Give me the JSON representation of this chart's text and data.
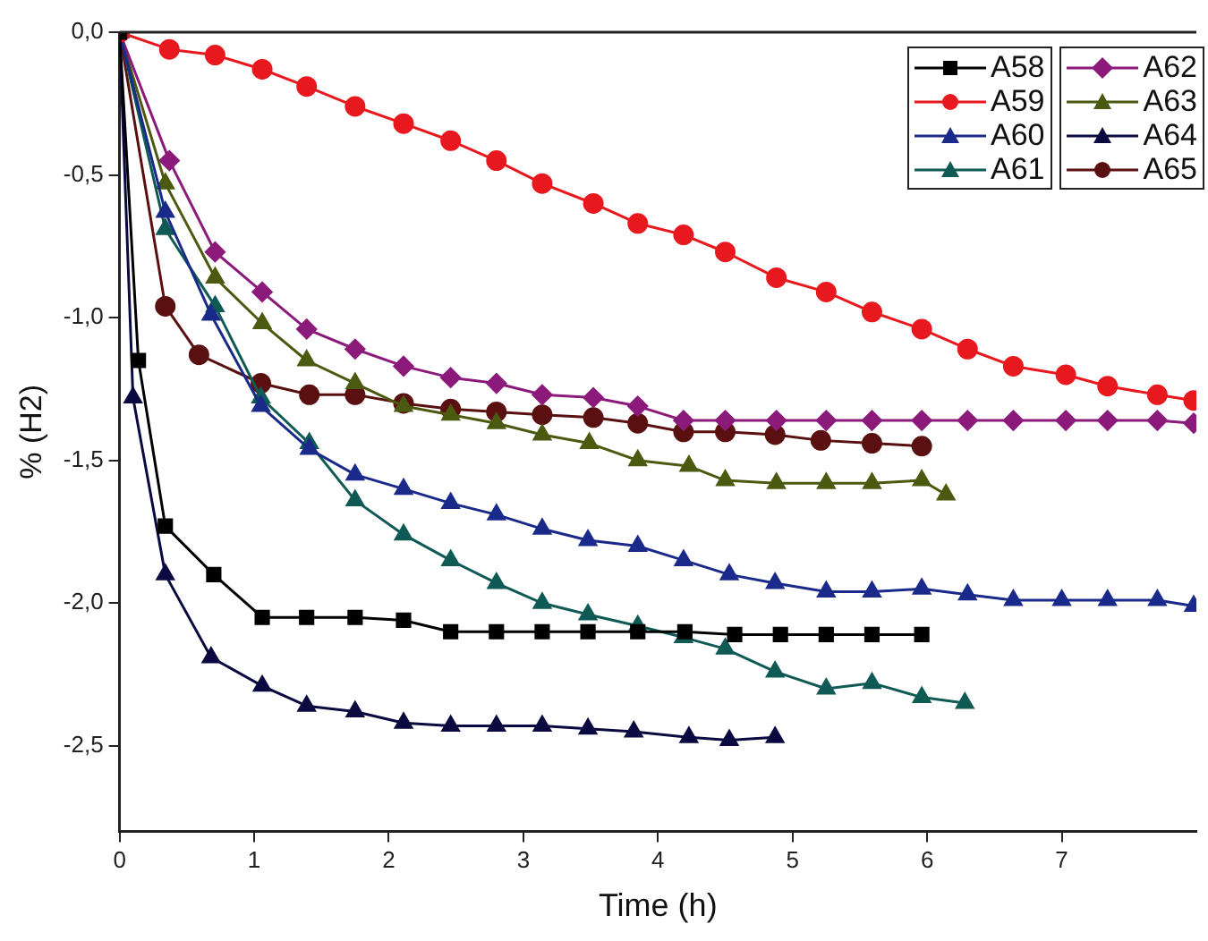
{
  "chart_data": {
    "type": "line",
    "xlabel": "Time (h)",
    "ylabel": "% (H2)",
    "xlim": [
      0,
      8
    ],
    "xticks": [
      0,
      1,
      2,
      3,
      4,
      5,
      6,
      7
    ],
    "ylim": [
      -2.8,
      0
    ],
    "yticks": [
      {
        "value": 0,
        "label": "0,0"
      },
      {
        "value": -0.5,
        "label": "-0,5"
      },
      {
        "value": -1,
        "label": "-1,0"
      },
      {
        "value": -1.5,
        "label": "-1,5"
      },
      {
        "value": -2,
        "label": "-2,0"
      },
      {
        "value": -2.5,
        "label": "-2,5"
      }
    ],
    "grid": false,
    "legend": "top right",
    "line_style": "solid",
    "series": [
      {
        "name": "A58",
        "color": "#000000",
        "marker": "square",
        "x": [
          0,
          0.14,
          0.34,
          0.7,
          1.06,
          1.39,
          1.75,
          2.11,
          2.46,
          2.8,
          3.14,
          3.48,
          3.85,
          4.2,
          4.57,
          4.91,
          5.25,
          5.59,
          5.96
        ],
        "values": [
          0,
          -1.15,
          -1.73,
          -1.9,
          -2.05,
          -2.05,
          -2.05,
          -2.06,
          -2.1,
          -2.1,
          -2.1,
          -2.1,
          -2.1,
          -2.1,
          -2.11,
          -2.11,
          -2.11,
          -2.11,
          -2.11
        ]
      },
      {
        "name": "A59",
        "color": "#e8191e",
        "marker": "circle",
        "x": [
          0,
          0.37,
          0.71,
          1.06,
          1.39,
          1.75,
          2.11,
          2.46,
          2.8,
          3.14,
          3.52,
          3.85,
          4.19,
          4.5,
          4.88,
          5.25,
          5.59,
          5.96,
          6.3,
          6.64,
          7.03,
          7.34,
          7.71,
          7.98
        ],
        "values": [
          0,
          -0.06,
          -0.08,
          -0.13,
          -0.19,
          -0.26,
          -0.32,
          -0.38,
          -0.45,
          -0.53,
          -0.6,
          -0.67,
          -0.71,
          -0.77,
          -0.86,
          -0.91,
          -0.98,
          -1.04,
          -1.11,
          -1.17,
          -1.2,
          -1.24,
          -1.27,
          -1.29
        ]
      },
      {
        "name": "A60",
        "color": "#1a2a8a",
        "marker": "triangle",
        "x": [
          0,
          0.34,
          0.68,
          1.05,
          1.41,
          1.75,
          2.11,
          2.46,
          2.8,
          3.14,
          3.48,
          3.85,
          4.19,
          4.53,
          4.87,
          5.25,
          5.59,
          5.96,
          6.3,
          6.64,
          7.0,
          7.34,
          7.71,
          7.98
        ],
        "values": [
          0,
          -0.63,
          -0.99,
          -1.31,
          -1.46,
          -1.55,
          -1.6,
          -1.65,
          -1.69,
          -1.74,
          -1.78,
          -1.8,
          -1.85,
          -1.9,
          -1.93,
          -1.96,
          -1.96,
          -1.95,
          -1.97,
          -1.99,
          -1.99,
          -1.99,
          -1.99,
          -2.01
        ]
      },
      {
        "name": "A61",
        "color": "#0f5a55",
        "marker": "triangle",
        "x": [
          0,
          0.34,
          0.71,
          1.05,
          1.41,
          1.75,
          2.11,
          2.46,
          2.8,
          3.14,
          3.48,
          3.85,
          4.19,
          4.5,
          4.87,
          5.25,
          5.59,
          5.96,
          6.28
        ],
        "values": [
          0,
          -0.69,
          -0.96,
          -1.28,
          -1.44,
          -1.64,
          -1.76,
          -1.85,
          -1.93,
          -2.0,
          -2.04,
          -2.08,
          -2.12,
          -2.16,
          -2.24,
          -2.3,
          -2.28,
          -2.33,
          -2.35
        ]
      },
      {
        "name": "A62",
        "color": "#8b1a7a",
        "marker": "diamond",
        "x": [
          0,
          0.37,
          0.71,
          1.06,
          1.39,
          1.75,
          2.11,
          2.46,
          2.8,
          3.14,
          3.52,
          3.85,
          4.19,
          4.5,
          4.88,
          5.25,
          5.59,
          5.96,
          6.3,
          6.64,
          7.03,
          7.34,
          7.71,
          7.98
        ],
        "values": [
          0,
          -0.45,
          -0.77,
          -0.91,
          -1.04,
          -1.11,
          -1.17,
          -1.21,
          -1.23,
          -1.27,
          -1.28,
          -1.31,
          -1.36,
          -1.36,
          -1.36,
          -1.36,
          -1.36,
          -1.36,
          -1.36,
          -1.36,
          -1.36,
          -1.36,
          -1.36,
          -1.37
        ]
      },
      {
        "name": "A63",
        "color": "#4b5a10",
        "marker": "triangle",
        "x": [
          0,
          0.34,
          0.71,
          1.06,
          1.39,
          1.75,
          2.11,
          2.46,
          2.8,
          3.14,
          3.49,
          3.85,
          4.23,
          4.5,
          4.88,
          5.25,
          5.59,
          5.96,
          6.14
        ],
        "values": [
          0,
          -0.53,
          -0.86,
          -1.02,
          -1.15,
          -1.23,
          -1.31,
          -1.34,
          -1.37,
          -1.41,
          -1.44,
          -1.5,
          -1.52,
          -1.57,
          -1.58,
          -1.58,
          -1.58,
          -1.57,
          -1.62
        ]
      },
      {
        "name": "A64",
        "color": "#0a0a40",
        "marker": "triangle",
        "x": [
          0,
          0.1,
          0.34,
          0.68,
          1.06,
          1.39,
          1.75,
          2.11,
          2.46,
          2.8,
          3.14,
          3.48,
          3.82,
          4.23,
          4.53,
          4.87
        ],
        "values": [
          0,
          -1.28,
          -1.9,
          -2.19,
          -2.29,
          -2.36,
          -2.38,
          -2.42,
          -2.43,
          -2.43,
          -2.43,
          -2.44,
          -2.45,
          -2.47,
          -2.48,
          -2.47
        ]
      },
      {
        "name": "A65",
        "color": "#5a1010",
        "marker": "circle",
        "x": [
          0,
          0.34,
          0.59,
          1.05,
          1.41,
          1.75,
          2.11,
          2.46,
          2.8,
          3.14,
          3.52,
          3.85,
          4.19,
          4.5,
          4.87,
          5.21,
          5.59,
          5.96
        ],
        "values": [
          0,
          -0.96,
          -1.13,
          -1.23,
          -1.27,
          -1.27,
          -1.3,
          -1.32,
          -1.33,
          -1.34,
          -1.35,
          -1.37,
          -1.4,
          -1.4,
          -1.41,
          -1.43,
          -1.44,
          -1.45
        ]
      }
    ]
  }
}
